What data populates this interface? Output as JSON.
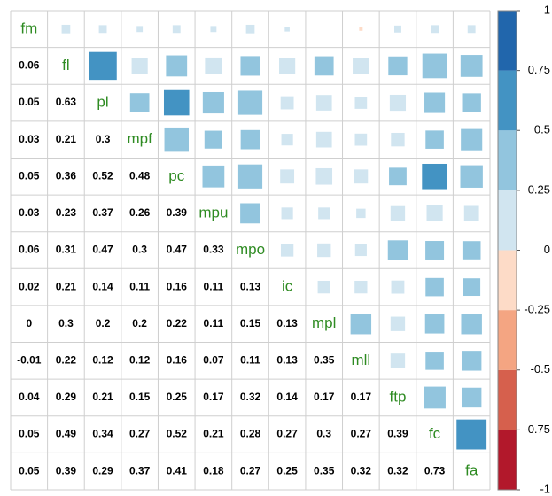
{
  "chart_data": {
    "type": "corrplot",
    "labels": [
      "fm",
      "fl",
      "pl",
      "mpf",
      "pc",
      "mpu",
      "mpo",
      "ic",
      "mpl",
      "mll",
      "ftp",
      "fc",
      "fa"
    ],
    "values": [
      [],
      [
        0.06
      ],
      [
        0.05,
        0.63
      ],
      [
        0.03,
        0.21,
        0.3
      ],
      [
        0.05,
        0.36,
        0.52,
        0.48
      ],
      [
        0.03,
        0.23,
        0.37,
        0.26,
        0.39
      ],
      [
        0.06,
        0.31,
        0.47,
        0.3,
        0.47,
        0.33
      ],
      [
        0.02,
        0.21,
        0.14,
        0.11,
        0.16,
        0.11,
        0.13
      ],
      [
        0,
        0.3,
        0.2,
        0.2,
        0.22,
        0.11,
        0.15,
        0.13
      ],
      [
        -0.01,
        0.22,
        0.12,
        0.12,
        0.16,
        0.07,
        0.11,
        0.13,
        0.35
      ],
      [
        0.04,
        0.29,
        0.21,
        0.15,
        0.25,
        0.17,
        0.32,
        0.14,
        0.17,
        0.17
      ],
      [
        0.05,
        0.49,
        0.34,
        0.27,
        0.52,
        0.21,
        0.28,
        0.27,
        0.3,
        0.27,
        0.39
      ],
      [
        0.05,
        0.39,
        0.29,
        0.37,
        0.41,
        0.18,
        0.27,
        0.25,
        0.35,
        0.32,
        0.32,
        0.73
      ]
    ],
    "clim": [
      -1,
      1
    ],
    "cticks": [
      1,
      0.75,
      0.5,
      0.25,
      0,
      -0.25,
      -0.5,
      -0.75,
      -1
    ],
    "colors": [
      "#b2182b",
      "#d6604d",
      "#f4a582",
      "#fddbc7",
      "#d1e5f0",
      "#92c5de",
      "#4393c3",
      "#2166ac"
    ],
    "label_color": "#2e8b22"
  }
}
